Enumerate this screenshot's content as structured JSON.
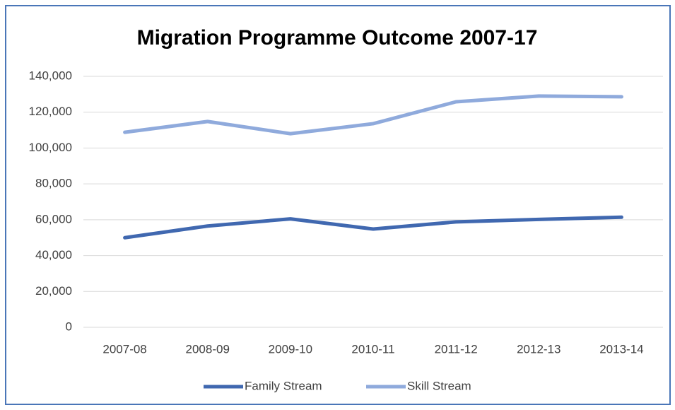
{
  "chart_data": {
    "type": "line",
    "title": "Migration Programme Outcome 2007-17",
    "categories": [
      "2007-08",
      "2008-09",
      "2009-10",
      "2010-11",
      "2011-12",
      "2012-13",
      "2013-14"
    ],
    "series": [
      {
        "name": "Family Stream",
        "color": "#4068b0",
        "values": [
          50000,
          56500,
          60500,
          54800,
          58800,
          60200,
          61400
        ]
      },
      {
        "name": "Skill Stream",
        "color": "#8faadc",
        "values": [
          108800,
          114800,
          108000,
          113600,
          125800,
          129000,
          128600
        ]
      }
    ],
    "ylim": [
      0,
      140000
    ],
    "yticks": [
      0,
      {
        "value": 20000,
        "label": "20,000"
      },
      {
        "value": 40000,
        "label": "40,000"
      },
      {
        "value": 60000,
        "label": "60,000"
      },
      {
        "value": 80000,
        "label": "80,000"
      },
      {
        "value": 100000,
        "label": "100,000"
      },
      {
        "value": 120000,
        "label": "120,000"
      },
      {
        "value": 140000,
        "label": "140,000"
      }
    ],
    "grid": true,
    "legend": "bottom"
  }
}
